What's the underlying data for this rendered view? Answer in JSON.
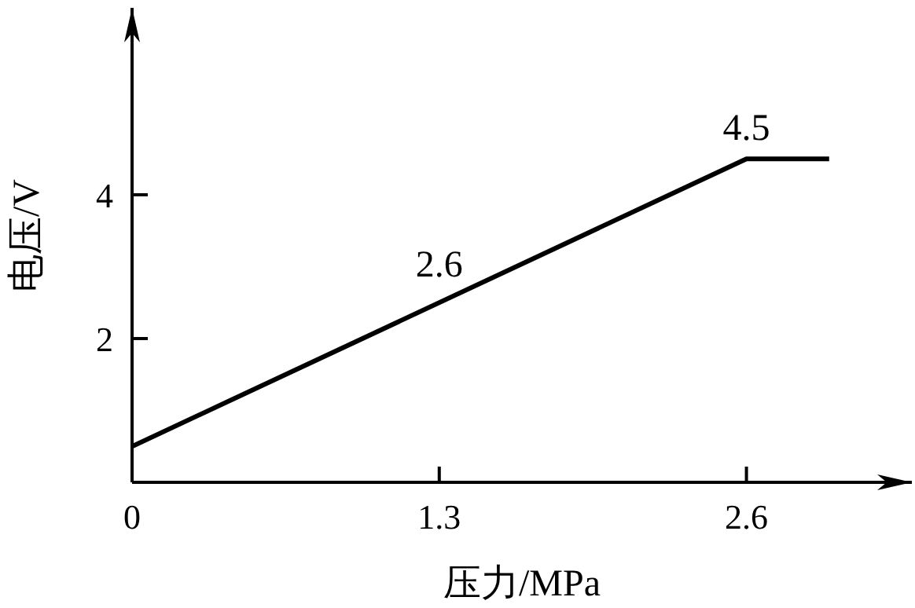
{
  "chart_data": {
    "type": "line",
    "xlabel": "压力/MPa",
    "ylabel": "电压/V",
    "x": [
      0,
      2.6,
      2.95
    ],
    "series": [
      {
        "color": "#000000",
        "values": [
          0.5,
          4.5,
          4.5
        ]
      }
    ],
    "xlim": [
      0,
      3.3
    ],
    "ylim": [
      0,
      6.6
    ],
    "xticks": [
      0,
      1.3,
      2.6
    ],
    "yticks": [
      2,
      4
    ],
    "annotations": [
      {
        "text": "2.6",
        "x": 1.3,
        "y": 2.6
      },
      {
        "text": "4.5",
        "x": 2.6,
        "y": 4.5
      }
    ],
    "grid": false,
    "legend": false,
    "marker": "none",
    "line_style": "solid"
  }
}
